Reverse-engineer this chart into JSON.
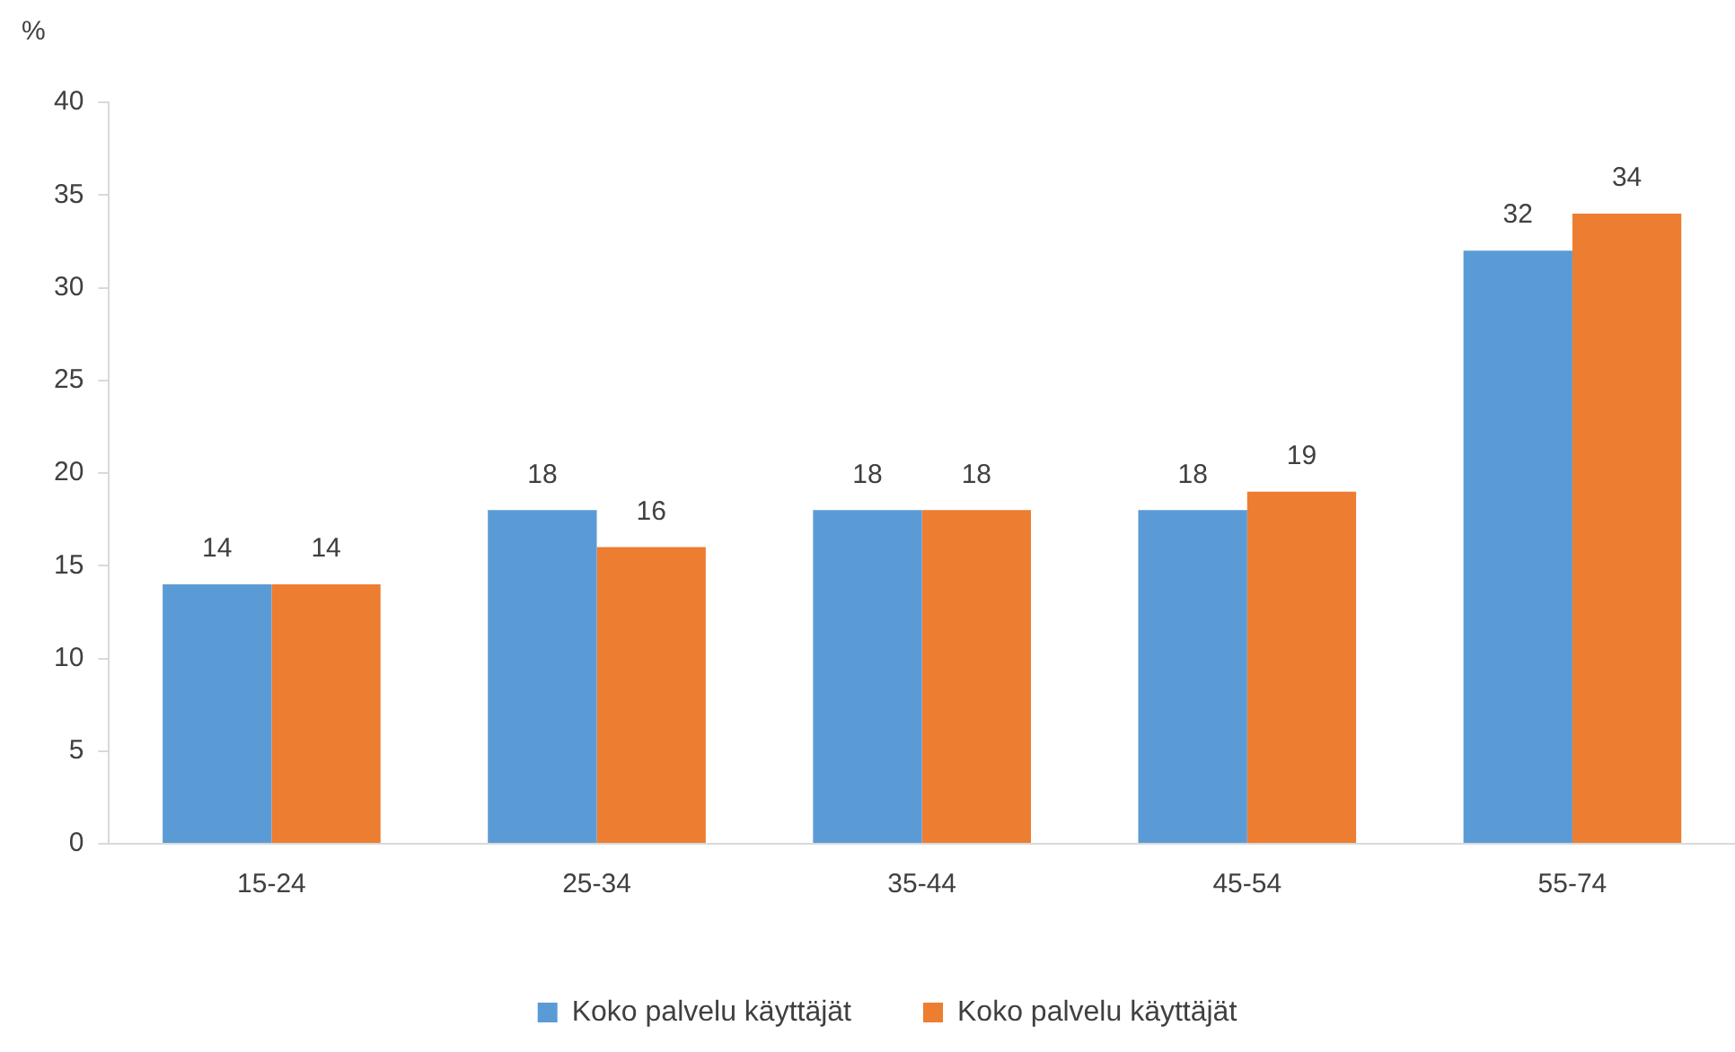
{
  "chart_data": {
    "type": "bar",
    "ylabel": "%",
    "categories": [
      "15-24",
      "25-34",
      "35-44",
      "45-54",
      "55-74"
    ],
    "series": [
      {
        "name": "Koko palvelu käyttäjät",
        "color": "#5b9bd5",
        "values": [
          14,
          18,
          18,
          18,
          32
        ]
      },
      {
        "name": "Koko palvelu käyttäjät",
        "color": "#ed7d31",
        "values": [
          14,
          16,
          18,
          19,
          34
        ]
      }
    ],
    "ylim": [
      0,
      40
    ],
    "yticks": [
      0,
      5,
      10,
      15,
      20,
      25,
      30,
      35,
      40
    ],
    "data_labels": true,
    "legend": "bottom"
  }
}
